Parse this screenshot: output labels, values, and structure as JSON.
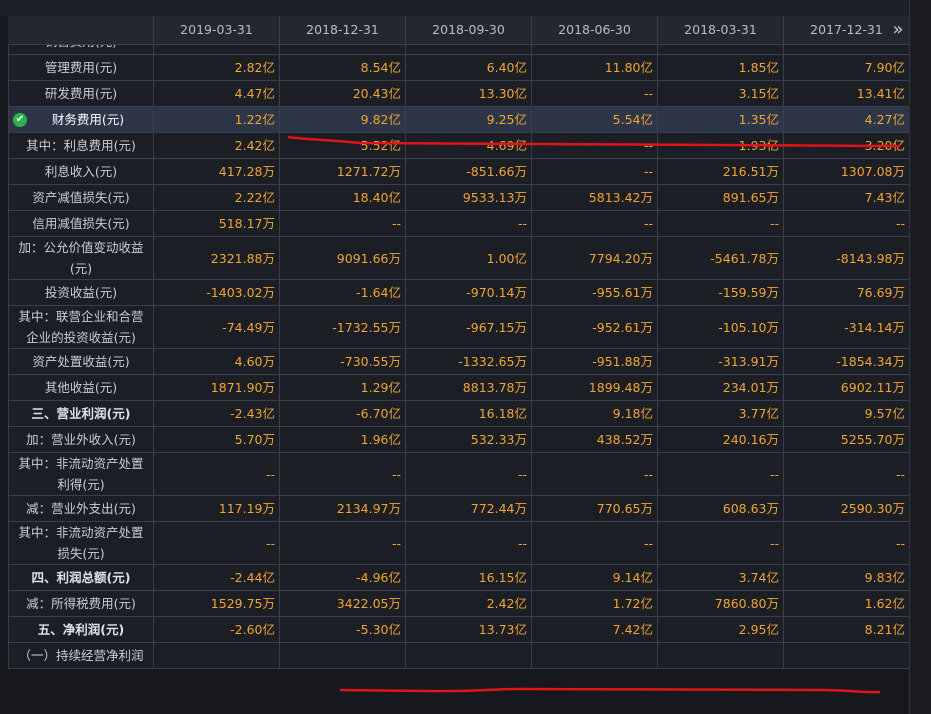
{
  "header": {
    "dates": [
      "2019-03-31",
      "2018-12-31",
      "2018-09-30",
      "2018-06-30",
      "2018-03-31",
      "2017-12-31"
    ],
    "more": "»"
  },
  "rows": [
    {
      "label": "销售费用(元)"
    },
    {
      "label": "管理费用(元)",
      "values": [
        "2.82亿",
        "8.54亿",
        "6.40亿",
        "11.80亿",
        "1.85亿",
        "7.90亿"
      ]
    },
    {
      "label": "研发费用(元)",
      "values": [
        "4.47亿",
        "20.43亿",
        "13.30亿",
        "--",
        "3.15亿",
        "13.41亿"
      ]
    },
    {
      "label": "财务费用(元)",
      "selected": true,
      "values": [
        "1.22亿",
        "9.82亿",
        "9.25亿",
        "5.54亿",
        "1.35亿",
        "4.27亿"
      ]
    },
    {
      "label": "其中：利息费用(元)",
      "values": [
        "2.42亿",
        "5.52亿",
        "4.69亿",
        "--",
        "1.93亿",
        "3.20亿"
      ]
    },
    {
      "label": "利息收入(元)",
      "values": [
        "417.28万",
        "1271.72万",
        "-851.66万",
        "--",
        "216.51万",
        "1307.08万"
      ]
    },
    {
      "label": "资产减值损失(元)",
      "values": [
        "2.22亿",
        "18.40亿",
        "9533.13万",
        "5813.42万",
        "891.65万",
        "7.43亿"
      ]
    },
    {
      "label": "信用减值损失(元)",
      "values": [
        "518.17万",
        "--",
        "--",
        "--",
        "--",
        "--"
      ]
    },
    {
      "label": "加：公允价值变动收益(元)",
      "values": [
        "2321.88万",
        "9091.66万",
        "1.00亿",
        "7794.20万",
        "-5461.78万",
        "-8143.98万"
      ]
    },
    {
      "label": "投资收益(元)",
      "values": [
        "-1403.02万",
        "-1.64亿",
        "-970.14万",
        "-955.61万",
        "-159.59万",
        "76.69万"
      ]
    },
    {
      "label": "其中：联营企业和合营企业的投资收益(元)",
      "values": [
        "-74.49万",
        "-1732.55万",
        "-967.15万",
        "-952.61万",
        "-105.10万",
        "-314.14万"
      ]
    },
    {
      "label": "资产处置收益(元)",
      "values": [
        "4.60万",
        "-730.55万",
        "-1332.65万",
        "-951.88万",
        "-313.91万",
        "-1854.34万"
      ]
    },
    {
      "label": "其他收益(元)",
      "values": [
        "1871.90万",
        "1.29亿",
        "8813.78万",
        "1899.48万",
        "234.01万",
        "6902.11万"
      ]
    },
    {
      "label": "三、营业利润(元)",
      "bold": true,
      "values": [
        "-2.43亿",
        "-6.70亿",
        "16.18亿",
        "9.18亿",
        "3.77亿",
        "9.57亿"
      ]
    },
    {
      "label": "加：营业外收入(元)",
      "values": [
        "5.70万",
        "1.96亿",
        "532.33万",
        "438.52万",
        "240.16万",
        "5255.70万"
      ]
    },
    {
      "label": "其中：非流动资产处置利得(元)",
      "values": [
        "--",
        "--",
        "--",
        "--",
        "--",
        "--"
      ]
    },
    {
      "label": "减：营业外支出(元)",
      "values": [
        "117.19万",
        "2134.97万",
        "772.44万",
        "770.65万",
        "608.63万",
        "2590.30万"
      ]
    },
    {
      "label": "其中：非流动资产处置损失(元)",
      "values": [
        "--",
        "--",
        "--",
        "--",
        "--",
        "--"
      ]
    },
    {
      "label": "四、利润总额(元)",
      "bold": true,
      "values": [
        "-2.44亿",
        "-4.96亿",
        "16.15亿",
        "9.14亿",
        "3.74亿",
        "9.83亿"
      ]
    },
    {
      "label": "减：所得税费用(元)",
      "values": [
        "1529.75万",
        "3422.05万",
        "2.42亿",
        "1.72亿",
        "7860.80万",
        "1.62亿"
      ]
    },
    {
      "label": "五、净利润(元)",
      "bold": true,
      "values": [
        "-2.60亿",
        "-5.30亿",
        "13.73亿",
        "7.42亿",
        "2.95亿",
        "8.21亿"
      ]
    },
    {
      "label": "（一）持续经营净利润"
    }
  ]
}
